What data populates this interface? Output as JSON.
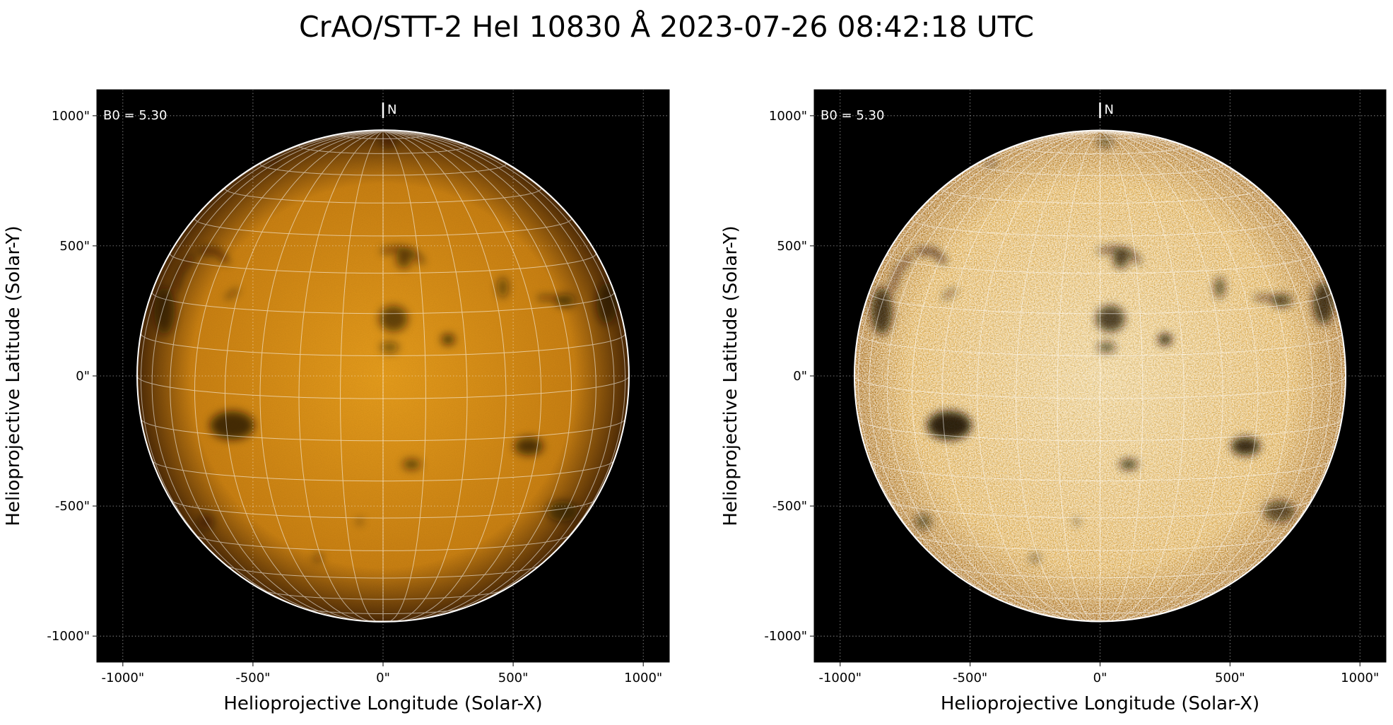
{
  "figure": {
    "title": "CrAO/STT-2 HeI 10830 Å 2023-07-26 08:42:18 UTC"
  },
  "panels": [
    {
      "id": "left",
      "variant": "standard",
      "b0_label": "B0 = 5.30",
      "north_label": "N",
      "x_axis_label": "Helioprojective Longitude (Solar-X)",
      "y_axis_label": "Helioprojective Latitude (Solar-Y)"
    },
    {
      "id": "right",
      "variant": "enhanced",
      "b0_label": "B0 = 5.30",
      "north_label": "N",
      "x_axis_label": "Helioprojective Longitude (Solar-X)",
      "y_axis_label": "Helioprojective Latitude (Solar-Y)"
    }
  ],
  "axes": {
    "x_range_arcsec": [
      -1100,
      1100
    ],
    "y_range_arcsec": [
      -1100,
      1100
    ],
    "x_ticks": [
      {
        "value": -1000,
        "label": "-1000\""
      },
      {
        "value": -500,
        "label": "-500\""
      },
      {
        "value": 0,
        "label": "0\""
      },
      {
        "value": 500,
        "label": "500\""
      },
      {
        "value": 1000,
        "label": "1000\""
      }
    ],
    "y_ticks": [
      {
        "value": 1000,
        "label": "1000\""
      },
      {
        "value": 500,
        "label": "500\""
      },
      {
        "value": 0,
        "label": "0\""
      },
      {
        "value": -500,
        "label": "-500\""
      },
      {
        "value": -1000,
        "label": "-1000\""
      }
    ],
    "grid": "dotted"
  },
  "sun": {
    "radius_arcsec": 945,
    "b0_degrees": 5.3,
    "grid_step_degrees": 10
  },
  "colors": {
    "sky": "#000000",
    "disk_standard_center": "#e29a1c",
    "disk_standard_limb": "#4a2806",
    "disk_enhanced_center": "#f6d388",
    "disk_enhanced_limb": "#a8660f",
    "grid_line": "#ffffff",
    "feature_dark": "#1a0d02"
  },
  "dark_features": [
    {
      "x": 40,
      "y": 220,
      "rx": 55,
      "ry": 50,
      "strength": 0.7
    },
    {
      "x": 25,
      "y": 110,
      "rx": 35,
      "ry": 20,
      "strength": 0.6
    },
    {
      "x": 250,
      "y": 140,
      "rx": 25,
      "ry": 20,
      "strength": 0.9
    },
    {
      "x": 80,
      "y": 450,
      "rx": 30,
      "ry": 35,
      "strength": 0.7
    },
    {
      "x": -580,
      "y": -190,
      "rx": 85,
      "ry": 55,
      "strength": 0.85
    },
    {
      "x": 560,
      "y": -270,
      "rx": 55,
      "ry": 35,
      "strength": 0.8
    },
    {
      "x": 110,
      "y": -340,
      "rx": 35,
      "ry": 20,
      "strength": 0.7
    },
    {
      "x": -840,
      "y": 250,
      "rx": 40,
      "ry": 90,
      "strength": 0.7
    },
    {
      "x": 860,
      "y": 280,
      "rx": 40,
      "ry": 80,
      "strength": 0.7
    },
    {
      "x": 700,
      "y": 290,
      "rx": 40,
      "ry": 25,
      "strength": 0.6
    },
    {
      "x": 460,
      "y": 340,
      "rx": 20,
      "ry": 40,
      "strength": 0.6
    },
    {
      "x": -680,
      "y": -560,
      "rx": 30,
      "ry": 30,
      "strength": 0.5
    },
    {
      "x": 690,
      "y": -520,
      "rx": 60,
      "ry": 40,
      "strength": 0.6
    },
    {
      "x": -90,
      "y": -560,
      "rx": 10,
      "ry": 10,
      "strength": 0.8
    },
    {
      "x": -250,
      "y": -700,
      "rx": 20,
      "ry": 15,
      "strength": 0.5
    },
    {
      "x": 20,
      "y": 900,
      "rx": 30,
      "ry": 20,
      "strength": 0.5
    },
    {
      "x": -420,
      "y": 820,
      "rx": 20,
      "ry": 15,
      "strength": 0.4
    }
  ],
  "filaments": [
    {
      "points": [
        [
          -700,
          480
        ],
        [
          -640,
          480
        ],
        [
          -600,
          440
        ]
      ],
      "width": 16
    },
    {
      "points": [
        [
          -730,
          460
        ],
        [
          -780,
          400
        ],
        [
          -800,
          330
        ]
      ],
      "width": 12
    },
    {
      "points": [
        [
          0,
          480
        ],
        [
          60,
          490
        ],
        [
          110,
          480
        ],
        [
          150,
          440
        ]
      ],
      "width": 14
    },
    {
      "points": [
        [
          600,
          300
        ],
        [
          660,
          300
        ],
        [
          700,
          280
        ]
      ],
      "width": 12
    },
    {
      "points": [
        [
          -600,
          300
        ],
        [
          -560,
          330
        ]
      ],
      "width": 10
    }
  ]
}
